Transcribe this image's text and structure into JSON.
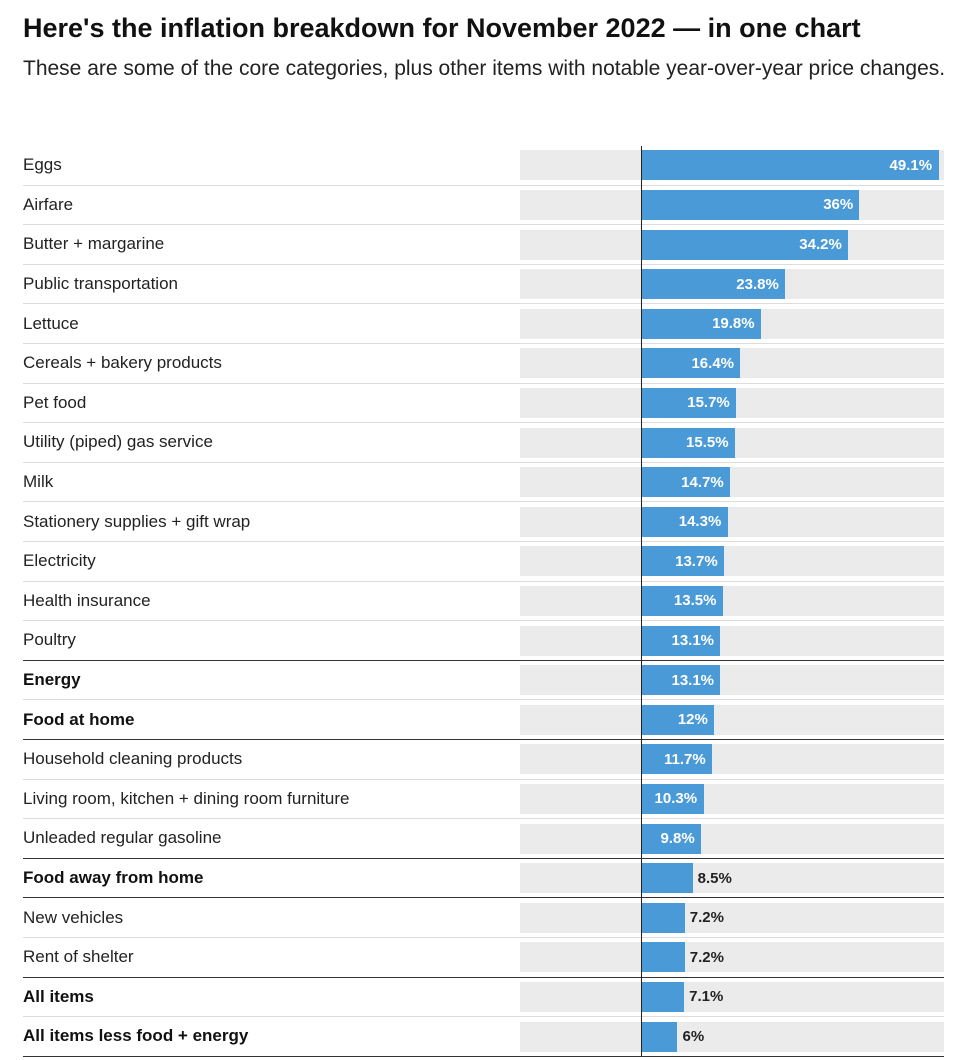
{
  "header": {
    "title": "Here's the inflation breakdown for November 2022 — in one chart",
    "subtitle": "These are some of the core categories, plus other items with notable year-over-year price changes."
  },
  "colors": {
    "bar": "#4a9ad8",
    "track": "#ebebeb",
    "axis": "#222222"
  },
  "chart_data": {
    "type": "bar",
    "orientation": "horizontal",
    "title": "Here's the inflation breakdown for November 2022 — in one chart",
    "subtitle": "These are some of the core categories, plus other items with notable year-over-year price changes.",
    "unit": "%",
    "xlim": [
      -20,
      50
    ],
    "categories": [
      "Eggs",
      "Airfare",
      "Butter + margarine",
      "Public transportation",
      "Lettuce",
      "Cereals + bakery products",
      "Pet food",
      "Utility (piped) gas service",
      "Milk",
      "Stationery supplies + gift wrap",
      "Electricity",
      "Health insurance",
      "Poultry",
      "Energy",
      "Food at home",
      "Household cleaning products",
      "Living room, kitchen + dining room furniture",
      "Unleaded regular gasoline",
      "Food away from home",
      "New vehicles",
      "Rent of shelter",
      "All items",
      "All items less food + energy"
    ],
    "values": [
      49.1,
      36,
      34.2,
      23.8,
      19.8,
      16.4,
      15.7,
      15.5,
      14.7,
      14.3,
      13.7,
      13.5,
      13.1,
      13.1,
      12,
      11.7,
      10.3,
      9.8,
      8.5,
      7.2,
      7.2,
      7.1,
      6
    ],
    "value_labels": [
      "49.1%",
      "36%",
      "34.2%",
      "23.8%",
      "19.8%",
      "16.4%",
      "15.7%",
      "15.5%",
      "14.7%",
      "14.3%",
      "13.7%",
      "13.5%",
      "13.1%",
      "13.1%",
      "12%",
      "11.7%",
      "10.3%",
      "9.8%",
      "8.5%",
      "7.2%",
      "7.2%",
      "7.1%",
      "6%"
    ],
    "bold_categories": [
      "Energy",
      "Food at home",
      "Food away from home",
      "All items",
      "All items less food + energy"
    ],
    "separator_after": [
      "Poultry",
      "Food at home",
      "Unleaded regular gasoline",
      "Food away from home",
      "Rent of shelter",
      "All items less food + energy"
    ]
  }
}
